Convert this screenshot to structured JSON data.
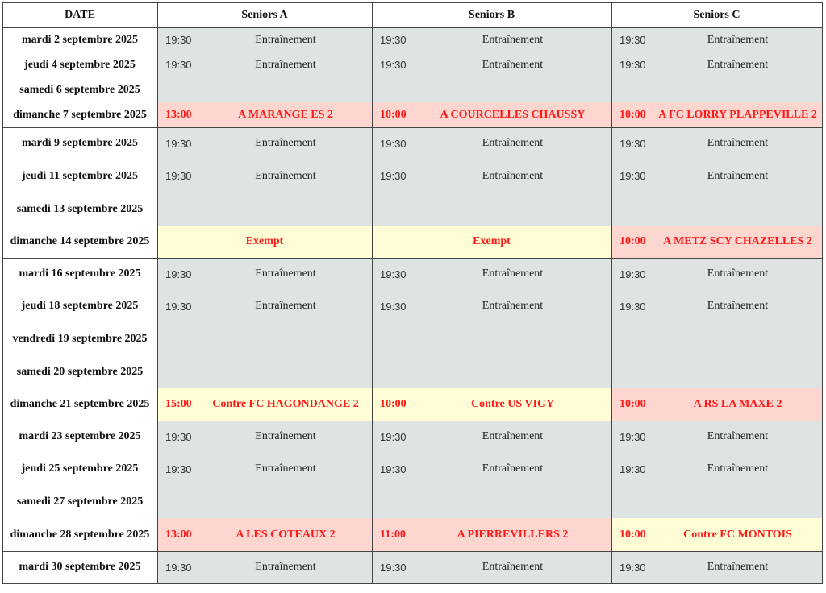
{
  "header": {
    "date": "DATE",
    "teams": [
      "Seniors A",
      "Seniors B",
      "Seniors C"
    ]
  },
  "colors": {
    "training": "#dde4e3",
    "away": "#fdd6cf",
    "home": "#fffdd6",
    "match_text": "#ff1a1a"
  },
  "weeks": [
    {
      "rows": [
        {
          "date": "mardi 2 septembre 2025",
          "cells": [
            {
              "type": "training",
              "time": "19:30",
              "label": "Entraînement"
            },
            {
              "type": "training",
              "time": "19:30",
              "label": "Entraînement"
            },
            {
              "type": "training",
              "time": "19:30",
              "label": "Entraînement"
            }
          ]
        },
        {
          "date": "jeudi 4 septembre 2025",
          "cells": [
            {
              "type": "training",
              "time": "19:30",
              "label": "Entraînement"
            },
            {
              "type": "training",
              "time": "19:30",
              "label": "Entraînement"
            },
            {
              "type": "training",
              "time": "19:30",
              "label": "Entraînement"
            }
          ]
        },
        {
          "date": "samedi 6 septembre 2025",
          "cells": [
            {
              "type": "training"
            },
            {
              "type": "training"
            },
            {
              "type": "training"
            }
          ]
        },
        {
          "date": "dimanche 7 septembre 2025",
          "cells": [
            {
              "type": "away",
              "time": "13:00",
              "label": "A MARANGE ES 2"
            },
            {
              "type": "away",
              "time": "10:00",
              "label": "A COURCELLES CHAUSSY"
            },
            {
              "type": "away",
              "time": "10:00",
              "label": "A FC LORRY PLAPPEVILLE 2"
            }
          ]
        }
      ]
    },
    {
      "rows": [
        {
          "date": "mardi 9 septembre 2025",
          "cells": [
            {
              "type": "training",
              "time": "19:30",
              "label": "Entraînement"
            },
            {
              "type": "training",
              "time": "19:30",
              "label": "Entraînement"
            },
            {
              "type": "training",
              "time": "19:30",
              "label": "Entraînement"
            }
          ]
        },
        {
          "date": "jeudi 11 septembre 2025",
          "cells": [
            {
              "type": "training",
              "time": "19:30",
              "label": "Entraînement"
            },
            {
              "type": "training",
              "time": "19:30",
              "label": "Entraînement"
            },
            {
              "type": "training",
              "time": "19:30",
              "label": "Entraînement"
            }
          ]
        },
        {
          "date": "samedi 13 septembre 2025",
          "cells": [
            {
              "type": "training"
            },
            {
              "type": "training"
            },
            {
              "type": "training"
            }
          ]
        },
        {
          "date": "dimanche 14 septembre 2025",
          "cells": [
            {
              "type": "exempt",
              "label": "Exempt"
            },
            {
              "type": "exempt",
              "label": "Exempt"
            },
            {
              "type": "away",
              "time": "10:00",
              "label": "A METZ SCY CHAZELLES 2"
            }
          ]
        }
      ]
    },
    {
      "rows": [
        {
          "date": "mardi 16 septembre 2025",
          "cells": [
            {
              "type": "training",
              "time": "19:30",
              "label": "Entraînement"
            },
            {
              "type": "training",
              "time": "19:30",
              "label": "Entraînement"
            },
            {
              "type": "training",
              "time": "19:30",
              "label": "Entraînement"
            }
          ]
        },
        {
          "date": "jeudi 18 septembre 2025",
          "cells": [
            {
              "type": "training",
              "time": "19:30",
              "label": "Entraînement"
            },
            {
              "type": "training",
              "time": "19:30",
              "label": "Entraînement"
            },
            {
              "type": "training",
              "time": "19:30",
              "label": "Entraînement"
            }
          ]
        },
        {
          "date": "vendredi 19 septembre 2025",
          "cells": [
            {
              "type": "training"
            },
            {
              "type": "training"
            },
            {
              "type": "training"
            }
          ]
        },
        {
          "date": "samedi 20 septembre 2025",
          "cells": [
            {
              "type": "training"
            },
            {
              "type": "training"
            },
            {
              "type": "training"
            }
          ]
        },
        {
          "date": "dimanche 21 septembre 2025",
          "cells": [
            {
              "type": "home",
              "time": "15:00",
              "label": "Contre FC HAGONDANGE 2"
            },
            {
              "type": "home",
              "time": "10:00",
              "label": "Contre US VIGY"
            },
            {
              "type": "away",
              "time": "10:00",
              "label": "A RS LA MAXE 2"
            }
          ]
        }
      ]
    },
    {
      "rows": [
        {
          "date": "mardi 23 septembre 2025",
          "cells": [
            {
              "type": "training",
              "time": "19:30",
              "label": "Entraînement"
            },
            {
              "type": "training",
              "time": "19:30",
              "label": "Entraînement"
            },
            {
              "type": "training",
              "time": "19:30",
              "label": "Entraînement"
            }
          ]
        },
        {
          "date": "jeudi 25 septembre 2025",
          "cells": [
            {
              "type": "training",
              "time": "19:30",
              "label": "Entraînement"
            },
            {
              "type": "training",
              "time": "19:30",
              "label": "Entraînement"
            },
            {
              "type": "training",
              "time": "19:30",
              "label": "Entraînement"
            }
          ]
        },
        {
          "date": "samedi 27 septembre 2025",
          "cells": [
            {
              "type": "training"
            },
            {
              "type": "training"
            },
            {
              "type": "training"
            }
          ]
        },
        {
          "date": "dimanche 28 septembre 2025",
          "cells": [
            {
              "type": "away",
              "time": "13:00",
              "label": "A LES COTEAUX 2"
            },
            {
              "type": "away",
              "time": "11:00",
              "label": "A PIERREVILLERS 2"
            },
            {
              "type": "home",
              "time": "10:00",
              "label": "Contre FC MONTOIS"
            }
          ]
        }
      ]
    },
    {
      "rows": [
        {
          "date": "mardi 30 septembre 2025",
          "cells": [
            {
              "type": "training",
              "time": "19:30",
              "label": "Entraînement"
            },
            {
              "type": "training",
              "time": "19:30",
              "label": "Entraînement"
            },
            {
              "type": "training",
              "time": "19:30",
              "label": "Entraînement"
            }
          ]
        }
      ]
    }
  ]
}
